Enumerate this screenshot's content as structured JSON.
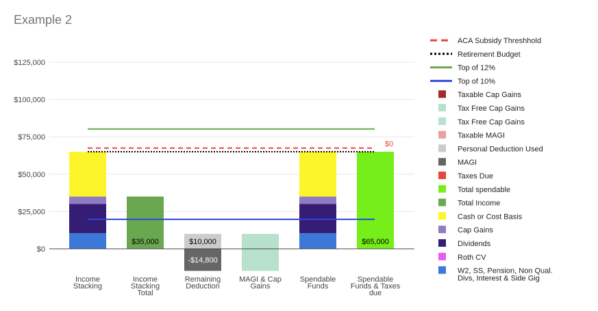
{
  "chart_data": {
    "type": "bar",
    "title": "Example 2",
    "xlabel": "",
    "ylabel": "",
    "ylim": [
      -15000,
      135000
    ],
    "yticks": [
      0,
      25000,
      50000,
      75000,
      100000,
      125000
    ],
    "ytick_labels": [
      "$0",
      "$25,000",
      "$50,000",
      "$75,000",
      "$100,000",
      "$125,000"
    ],
    "grid": true,
    "legend_position": "right",
    "categories": [
      "Income Stacking",
      "Income Stacking Total",
      "Remaining Deduction",
      "MAGI & Cap Gains",
      "Spendable Funds",
      "Spendable Funds & Taxes due"
    ],
    "bars": [
      {
        "category": "Income Stacking",
        "segments": [
          {
            "series": "W2, SS, Pension, Non Qual. Divs, Interest & Side Gig",
            "from": 0,
            "to": 10500
          },
          {
            "series": "Dividends",
            "from": 10500,
            "to": 30000
          },
          {
            "series": "Cap Gains",
            "from": 30000,
            "to": 35000
          },
          {
            "series": "Cash or Cost Basis",
            "from": 35000,
            "to": 65000
          }
        ]
      },
      {
        "category": "Income Stacking Total",
        "segments": [
          {
            "series": "Total Income",
            "from": 0,
            "to": 35000,
            "label": "$35,000"
          }
        ]
      },
      {
        "category": "Remaining Deduction",
        "segments": [
          {
            "series": "Personal Deduction Used",
            "from": 0,
            "to": 10000,
            "label": "$10,000"
          },
          {
            "series": "MAGI",
            "from": -14800,
            "to": 0,
            "label": "-$14,800"
          }
        ]
      },
      {
        "category": "MAGI & Cap Gains",
        "segments": [
          {
            "series": "Tax Free Cap Gains",
            "from": -14800,
            "to": 10000
          }
        ]
      },
      {
        "category": "Spendable Funds",
        "segments": [
          {
            "series": "W2, SS, Pension, Non Qual. Divs, Interest & Side Gig",
            "from": 0,
            "to": 10500
          },
          {
            "series": "Dividends",
            "from": 10500,
            "to": 30000
          },
          {
            "series": "Cap Gains",
            "from": 30000,
            "to": 35000
          },
          {
            "series": "Cash or Cost Basis",
            "from": 35000,
            "to": 65000
          }
        ]
      },
      {
        "category": "Spendable Funds & Taxes due",
        "segments": [
          {
            "series": "Total spendable",
            "from": 0,
            "to": 65000,
            "label": "$65,000"
          },
          {
            "series": "Taxes Due",
            "from": 65000,
            "to": 65000,
            "label": "$0"
          }
        ]
      }
    ],
    "lines": [
      {
        "name": "ACA Subsidy Threshhold",
        "value": 67500,
        "color": "#e8453c",
        "style": "dashed"
      },
      {
        "name": "Retirement Budget",
        "value": 65000,
        "color": "#000000",
        "style": "dotted"
      },
      {
        "name": "Top of 12%",
        "value": 80250,
        "color": "#6aa84f",
        "style": "solid"
      },
      {
        "name": "Top of 10%",
        "value": 19750,
        "color": "#2f48d6",
        "style": "solid"
      }
    ],
    "series_colors": {
      "Taxable Cap Gains": "#a52a2a",
      "Tax Free Cap Gains": "#b7e1cd",
      "Taxable MAGI": "#e8a0a0",
      "Personal Deduction Used": "#cccccc",
      "MAGI": "#666666",
      "Taxes Due": "#e8453c",
      "Total spendable": "#76ee19",
      "Total Income": "#6aa84f",
      "Cash or Cost Basis": "#fdf52c",
      "Cap Gains": "#8e7cc3",
      "Dividends": "#351c75",
      "Roth CV": "#e85ef0",
      "W2, SS, Pension, Non Qual. Divs, Interest & Side Gig": "#3c78d8"
    },
    "legend": [
      {
        "name": "ACA Subsidy Threshhold",
        "kind": "dashed-line",
        "color": "#e8453c"
      },
      {
        "name": "Retirement Budget",
        "kind": "dotted-line",
        "color": "#000000"
      },
      {
        "name": "Top of 12%",
        "kind": "line",
        "color": "#6aa84f"
      },
      {
        "name": "Top of 10%",
        "kind": "line",
        "color": "#2f48d6"
      },
      {
        "name": "Taxable Cap Gains",
        "kind": "box",
        "color": "#a52a2a"
      },
      {
        "name": "Tax Free Cap Gains",
        "kind": "box",
        "color": "#b7e1cd"
      },
      {
        "name": "Tax Free Cap Gains",
        "kind": "box",
        "color": "#b7e1cd"
      },
      {
        "name": "Taxable MAGI",
        "kind": "box",
        "color": "#e8a0a0"
      },
      {
        "name": "Personal Deduction Used",
        "kind": "box",
        "color": "#cccccc"
      },
      {
        "name": "MAGI",
        "kind": "box",
        "color": "#666666"
      },
      {
        "name": "Taxes Due",
        "kind": "box",
        "color": "#e8453c"
      },
      {
        "name": "Total spendable",
        "kind": "box",
        "color": "#76ee19"
      },
      {
        "name": "Total Income",
        "kind": "box",
        "color": "#6aa84f"
      },
      {
        "name": "Cash or Cost Basis",
        "kind": "box",
        "color": "#fdf52c"
      },
      {
        "name": "Cap Gains",
        "kind": "box",
        "color": "#8e7cc3"
      },
      {
        "name": "Dividends",
        "kind": "box",
        "color": "#351c75"
      },
      {
        "name": "Roth CV",
        "kind": "box",
        "color": "#e85ef0"
      },
      {
        "name": "W2, SS, Pension, Non Qual. Divs, Interest & Side Gig",
        "kind": "box",
        "color": "#3c78d8"
      }
    ]
  }
}
